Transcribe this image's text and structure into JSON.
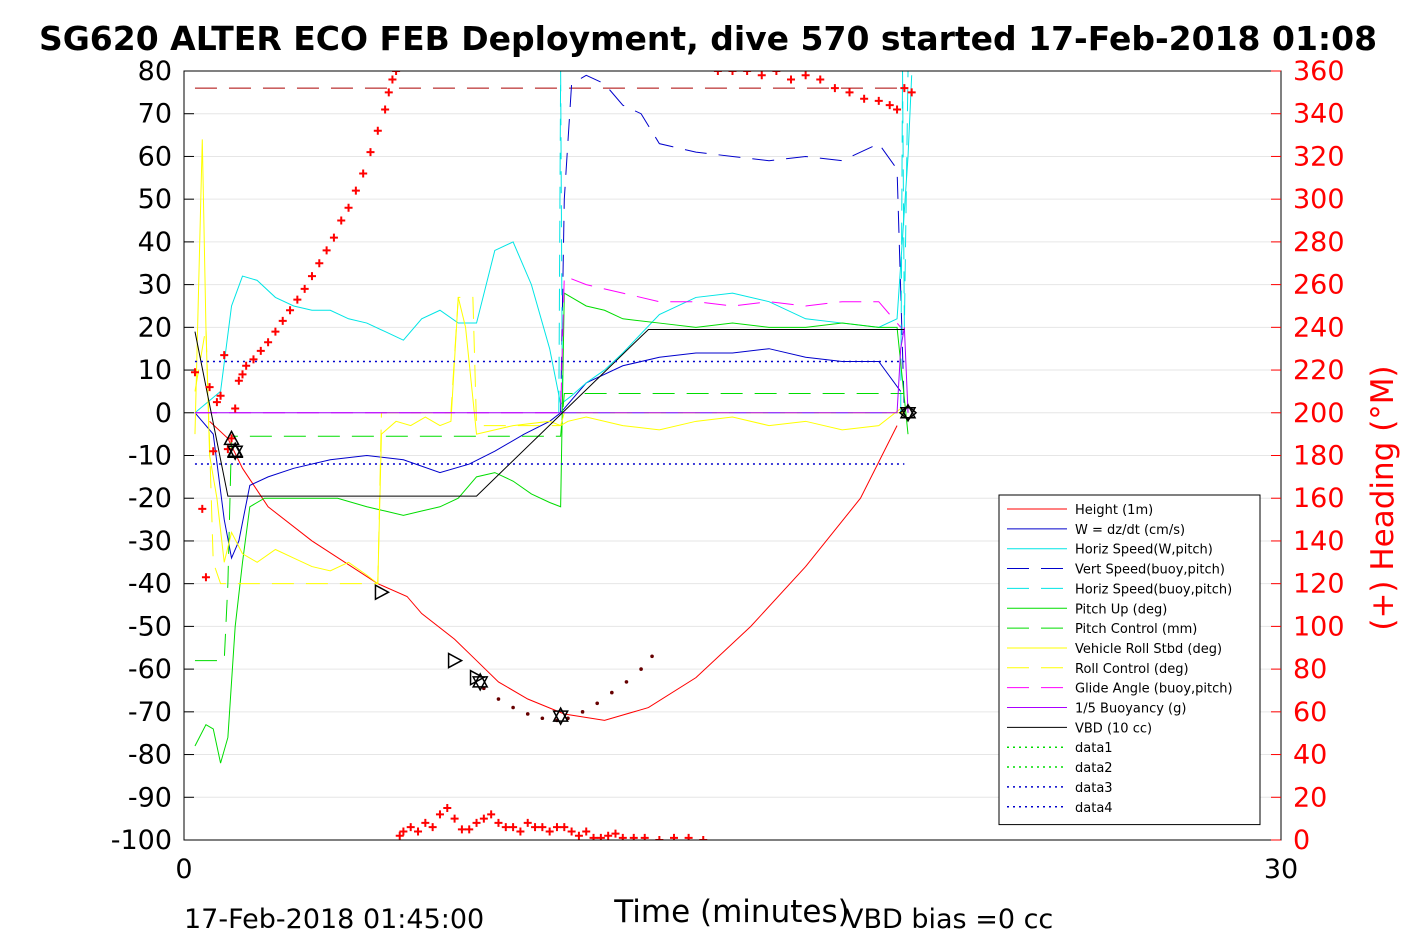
{
  "chart_data": {
    "type": "line",
    "title": "SG620 ALTER ECO FEB Deployment, dive 570 started 17-Feb-2018 01:08",
    "xlabel": "Time (minutes)",
    "ylabel_right": "(+) Heading (°M)",
    "xlim": [
      0,
      30
    ],
    "ylim": [
      -100,
      80
    ],
    "ylim_right": [
      0,
      360
    ],
    "x_ticks": [
      "0",
      "30"
    ],
    "y_ticks": [
      "80",
      "70",
      "60",
      "50",
      "40",
      "30",
      "20",
      "10",
      "0",
      "-10",
      "-20",
      "-30",
      "-40",
      "-50",
      "-60",
      "-70",
      "-80",
      "-90",
      "-100"
    ],
    "y_right_ticks": [
      "360",
      "340",
      "320",
      "300",
      "280",
      "260",
      "240",
      "220",
      "200",
      "180",
      "160",
      "140",
      "120",
      "100",
      "80",
      "60",
      "40",
      "20",
      "0"
    ],
    "grid": true,
    "legend_position": "bottom-right",
    "footer_left": "17-Feb-2018 01:45:00",
    "footer_right": "VBD bias =0 cc",
    "colors": {
      "red": "#ff0000",
      "blue": "#0000cc",
      "cyan": "#00e5e5",
      "green": "#00dd00",
      "yellow": "#ffff00",
      "magenta": "#ff00ff",
      "black": "#000000",
      "darkred": "#aa0000"
    },
    "series": [
      {
        "name": "Height (1m)",
        "color": "#ff0000",
        "dash": "",
        "width": 1,
        "x": [
          0.7,
          1.2,
          1.6,
          2.3,
          3.5,
          5.3,
          6.1,
          6.5,
          7.4,
          8.0,
          8.6,
          9.4,
          10.4,
          11.5,
          12.7,
          14.0,
          15.5,
          17.0,
          18.5,
          19.5
        ],
        "y": [
          -2,
          -6,
          -13,
          -22,
          -30,
          -40,
          -43,
          -47,
          -53,
          -58,
          -63,
          -67,
          -70.5,
          -72,
          -69,
          -62,
          -50,
          -36,
          -20,
          -3
        ]
      },
      {
        "name": "W = dz/dt (cm/s)",
        "color": "#0000cc",
        "dash": "",
        "width": 1,
        "x": [
          0.3,
          0.8,
          1.1,
          1.3,
          1.5,
          1.8,
          2.3,
          3.0,
          4.0,
          5.0,
          6.0,
          7.0,
          7.8,
          8.5,
          9.3,
          10.0,
          10.3,
          10.5,
          11.0,
          12.0,
          13.0,
          14.0,
          15.0,
          16.0,
          17.0,
          18.0,
          19.0,
          19.6
        ],
        "y": [
          0,
          -5,
          -25,
          -34,
          -30,
          -17,
          -15,
          -13,
          -11,
          -10,
          -11,
          -14,
          -12,
          -9,
          -5,
          -2,
          0,
          2,
          7,
          11,
          13,
          14,
          14,
          15,
          13,
          12,
          12,
          5
        ]
      },
      {
        "name": "Horiz Speed(W,pitch)",
        "color": "#00e5e5",
        "dash": "",
        "width": 1,
        "x": [
          0.3,
          1.0,
          1.3,
          1.6,
          2.0,
          2.5,
          3.0,
          3.5,
          4.0,
          4.5,
          5.0,
          5.5,
          6.0,
          6.5,
          7.0,
          7.5,
          8.0,
          8.5,
          9.0,
          9.5,
          10.0,
          10.3,
          10.6,
          11.0,
          11.5,
          12.0,
          13.0,
          14.0,
          15.0,
          16.0,
          17.0,
          18.0,
          19.0,
          19.5,
          19.8,
          19.9
        ],
        "y": [
          0,
          5,
          25,
          32,
          31,
          27,
          25,
          24,
          24,
          22,
          21,
          19,
          17,
          22,
          24,
          21,
          21,
          38,
          40,
          30,
          15,
          2,
          4,
          7,
          10,
          14,
          23,
          27,
          28,
          26,
          22,
          21,
          20,
          22,
          60,
          79
        ]
      },
      {
        "name": "Vert Speed(buoy,pitch)",
        "color": "#0000cc",
        "dash": "22,12",
        "width": 1,
        "x": [
          10.3,
          10.4,
          10.6,
          11.0,
          11.5,
          12.0,
          12.5,
          13.0,
          14.0,
          15.0,
          16.0,
          17.0,
          18.0,
          19.0,
          19.5,
          19.7
        ],
        "y": [
          0,
          50,
          77,
          79,
          77,
          72,
          70,
          63,
          61,
          60,
          59,
          60,
          59,
          63,
          57,
          0
        ]
      },
      {
        "name": "Horiz Speed(buoy,pitch)",
        "color": "#00e5e5",
        "dash": "22,12",
        "width": 1,
        "x": [
          10.25,
          10.3,
          10.35,
          19.6,
          19.65,
          19.7,
          19.8
        ],
        "y": [
          0,
          80,
          0,
          0,
          80,
          20,
          80
        ]
      },
      {
        "name": "Pitch Up (deg)",
        "color": "#00dd00",
        "dash": "",
        "width": 1,
        "x": [
          0.3,
          0.6,
          0.8,
          1.0,
          1.2,
          1.4,
          1.6,
          1.8,
          2.2,
          2.8,
          3.5,
          4.2,
          5.0,
          5.5,
          6.0,
          6.5,
          7.0,
          7.5,
          8.0,
          8.5,
          9.0,
          9.5,
          10.0,
          10.3,
          10.4,
          10.6,
          11.0,
          11.5,
          12.0,
          13.0,
          14.0,
          15.0,
          16.0,
          17.0,
          18.0,
          19.0,
          19.5,
          19.8
        ],
        "y": [
          -78,
          -73,
          -74,
          -82,
          -76,
          -50,
          -35,
          -22,
          -20,
          -20,
          -20,
          -20,
          -22,
          -23,
          -24,
          -23,
          -22,
          -20,
          -15,
          -14,
          -16,
          -19,
          -21,
          -22,
          28,
          27,
          25,
          24,
          22,
          21,
          20,
          21,
          20,
          20,
          21,
          20,
          20,
          -5
        ]
      },
      {
        "name": "Pitch Control (mm)",
        "color": "#00dd00",
        "dash": "22,12",
        "width": 1,
        "x": [
          0.3,
          1.1,
          1.2,
          1.3,
          10.3,
          10.4,
          19.7
        ],
        "y": [
          -58,
          -58,
          -40,
          -5.5,
          -5.5,
          4.5,
          4.5
        ]
      },
      {
        "name": "Vehicle Roll Stbd (deg)",
        "color": "#ffff00",
        "dash": "",
        "width": 1,
        "x": [
          0.3,
          0.5,
          0.6,
          0.7,
          0.9,
          1.1,
          1.3,
          1.6,
          2.0,
          2.5,
          3.0,
          3.5,
          4.0,
          4.5,
          5.0,
          5.3,
          5.4,
          5.8,
          6.2,
          6.6,
          7.0,
          7.3,
          7.5,
          7.7,
          8.0,
          8.5,
          9.0,
          10.0,
          10.3,
          10.5,
          11.0,
          12.0,
          13.0,
          14.0,
          15.0,
          16.0,
          17.0,
          18.0,
          19.0,
          19.6
        ],
        "y": [
          -5,
          64,
          20,
          -10,
          -20,
          -35,
          -28,
          -33,
          -35,
          -32,
          -34,
          -36,
          -37,
          -35,
          -38,
          -40,
          -5,
          -2,
          -3,
          -1,
          -3,
          -2,
          27,
          20,
          -5,
          -4,
          -3,
          -2,
          -3,
          -2,
          -1,
          -3,
          -4,
          -2,
          -1,
          -3,
          -2,
          -4,
          -3,
          1
        ]
      },
      {
        "name": "Roll Control (deg)",
        "color": "#ffff00",
        "dash": "22,12",
        "width": 1,
        "x": [
          0.3,
          0.6,
          0.8,
          1.0,
          1.2,
          5.3,
          5.4,
          7.3,
          7.5,
          7.9,
          8.0,
          10.3,
          10.4,
          19.7
        ],
        "y": [
          5,
          20,
          -35,
          -40,
          -40,
          -40,
          0,
          0,
          27,
          27,
          -3,
          -3,
          0,
          0
        ]
      },
      {
        "name": "Glide Angle (buoy,pitch)",
        "color": "#ff00ff",
        "dash": "22,12",
        "width": 1,
        "x": [
          0.3,
          10.3,
          10.4,
          11.0,
          12.0,
          13.0,
          14.0,
          15.0,
          16.0,
          17.0,
          18.0,
          19.0,
          19.6
        ],
        "y": [
          0,
          0,
          32,
          30,
          28,
          26,
          26,
          25,
          26,
          25,
          26,
          26,
          20
        ]
      },
      {
        "name": "1/5 Buoyancy (g)",
        "color": "#aa00ff",
        "dash": "",
        "width": 1,
        "x": [
          0.3,
          19.5,
          19.6,
          19.7,
          19.8
        ],
        "y": [
          0,
          0,
          15,
          20,
          0
        ]
      },
      {
        "name": "VBD (10 cc)",
        "color": "#000000",
        "dash": "",
        "width": 1,
        "x": [
          0.3,
          1.2,
          8.0,
          12.7,
          19.7
        ],
        "y": [
          19,
          -19.5,
          -19.5,
          19.5,
          19.5
        ]
      },
      {
        "name": "data1",
        "color": "#00dd00",
        "dash": "2,4",
        "width": 1.5,
        "x": [],
        "y": []
      },
      {
        "name": "data2",
        "color": "#00dd00",
        "dash": "2,4",
        "width": 1.5,
        "x": [],
        "y": []
      },
      {
        "name": "data3",
        "color": "#0000cc",
        "dash": "2,4",
        "width": 1.5,
        "x": [
          0.3,
          19.7
        ],
        "y": [
          12,
          12
        ]
      },
      {
        "name": "data4",
        "color": "#0000cc",
        "dash": "2,4",
        "width": 1.5,
        "x": [
          0.3,
          19.7
        ],
        "y": [
          -12,
          -12
        ]
      }
    ],
    "reference_line": {
      "color": "#aa0000",
      "dash": "22,12",
      "x": [
        0.3,
        19.7
      ],
      "y": [
        76,
        76
      ]
    },
    "markers": {
      "triangles_left": [
        {
          "x": 1.3,
          "y": -6
        },
        {
          "x": 1.4,
          "y": -9
        }
      ],
      "triangles_right": [
        {
          "x": 5.4,
          "y": -42
        },
        {
          "x": 7.4,
          "y": -58
        },
        {
          "x": 8.0,
          "y": -62
        }
      ],
      "hexagrams": [
        {
          "x": 1.4,
          "y": -9
        },
        {
          "x": 8.1,
          "y": -63
        },
        {
          "x": 10.3,
          "y": -71
        },
        {
          "x": 19.8,
          "y": 0
        }
      ],
      "diamonds": [
        {
          "x": 19.8,
          "y": 0
        }
      ]
    },
    "heading_points": {
      "color": "#ff0000",
      "x": [
        0.3,
        0.5,
        0.6,
        0.7,
        0.8,
        0.9,
        1.0,
        1.1,
        1.2,
        1.3,
        1.4,
        1.5,
        1.6,
        1.7,
        1.9,
        2.1,
        2.3,
        2.5,
        2.7,
        2.9,
        3.1,
        3.3,
        3.5,
        3.7,
        3.9,
        4.1,
        4.3,
        4.5,
        4.7,
        4.9,
        5.1,
        5.3,
        5.5,
        5.6,
        5.7,
        5.8,
        5.9,
        6.0,
        6.2,
        6.4,
        6.6,
        6.8,
        7.0,
        7.2,
        7.4,
        7.6,
        7.8,
        8.0,
        8.2,
        8.4,
        8.6,
        8.8,
        9.0,
        9.2,
        9.4,
        9.6,
        9.8,
        10.0,
        10.2,
        10.4,
        10.6,
        10.8,
        11.0,
        11.2,
        11.4,
        11.6,
        11.8,
        12.0,
        12.3,
        12.6,
        13.0,
        13.4,
        13.8,
        14.2,
        14.6,
        15.0,
        15.4,
        15.8,
        16.2,
        16.6,
        17.0,
        17.4,
        17.8,
        18.2,
        18.6,
        19.0,
        19.3,
        19.5,
        19.7,
        19.9
      ],
      "y": [
        219,
        155,
        123,
        212,
        182,
        205,
        208,
        227,
        183,
        188,
        202,
        215,
        218,
        222,
        225,
        229,
        233,
        238,
        243,
        248,
        253,
        258,
        264,
        270,
        276,
        282,
        290,
        296,
        304,
        312,
        322,
        332,
        342,
        350,
        356,
        360,
        2,
        4,
        6,
        4,
        8,
        6,
        12,
        15,
        10,
        5,
        5,
        8,
        10,
        12,
        8,
        6,
        6,
        4,
        8,
        6,
        6,
        4,
        6,
        6,
        4,
        2,
        4,
        1,
        1,
        2,
        3,
        1,
        1,
        1,
        0,
        1,
        1,
        0,
        360,
        360,
        360,
        358,
        360,
        356,
        358,
        356,
        352,
        350,
        347,
        346,
        344,
        342,
        352,
        350
      ]
    },
    "depth_points": {
      "color": "#660000",
      "x": [
        8.2,
        8.6,
        9.0,
        9.4,
        9.8,
        10.2,
        10.5,
        10.9,
        11.3,
        11.7,
        12.1,
        12.5,
        12.8
      ],
      "y": [
        -64.5,
        -67,
        -69,
        -70.5,
        -71.5,
        -72,
        -71.5,
        -70,
        -68,
        -65.5,
        -63,
        -60,
        -57
      ]
    }
  }
}
